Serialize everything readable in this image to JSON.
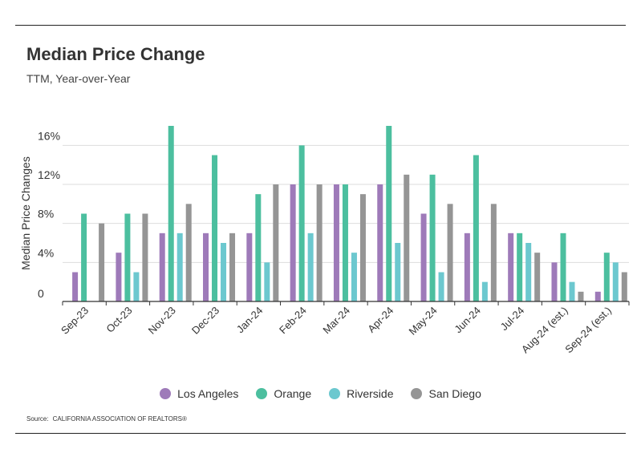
{
  "header": {
    "title": "Median Price Change",
    "subtitle": "TTM, Year-over-Year"
  },
  "source": {
    "label": "Source:",
    "text": "CALIFORNIA ASSOCIATION OF REALTORS®"
  },
  "chart_data": {
    "type": "bar",
    "title": "Median Price Change",
    "subtitle": "TTM, Year-over-Year",
    "xlabel": "",
    "ylabel": "Median Price Changes",
    "y_unit": "%",
    "ylim": [
      0,
      18
    ],
    "yticks": [
      0,
      4,
      8,
      12,
      16
    ],
    "ytick_labels": [
      "0",
      "4%",
      "8%",
      "12%",
      "16%"
    ],
    "grid": true,
    "legend_position": "bottom",
    "categories": [
      "Sep-23",
      "Oct-23",
      "Nov-23",
      "Dec-23",
      "Jan-24",
      "Feb-24",
      "Mar-24",
      "Apr-24",
      "May-24",
      "Jun-24",
      "Jul-24",
      "Aug-24 (est.)",
      "Sep-24 (est.)"
    ],
    "series": [
      {
        "name": "Los Angeles",
        "color": "#9e7ab9",
        "values": [
          3,
          5,
          7,
          7,
          7,
          12,
          12,
          12,
          9,
          7,
          7,
          4,
          1
        ]
      },
      {
        "name": "Orange",
        "color": "#4cbf9f",
        "values": [
          9,
          9,
          18,
          15,
          11,
          16,
          12,
          18,
          13,
          15,
          7,
          7,
          5
        ]
      },
      {
        "name": "Riverside",
        "color": "#6cc8cf",
        "values": [
          0,
          3,
          7,
          6,
          4,
          7,
          5,
          6,
          3,
          2,
          6,
          2,
          4
        ]
      },
      {
        "name": "San Diego",
        "color": "#959595",
        "values": [
          8,
          9,
          10,
          7,
          12,
          12,
          11,
          13,
          10,
          10,
          5,
          1,
          3
        ]
      }
    ]
  }
}
